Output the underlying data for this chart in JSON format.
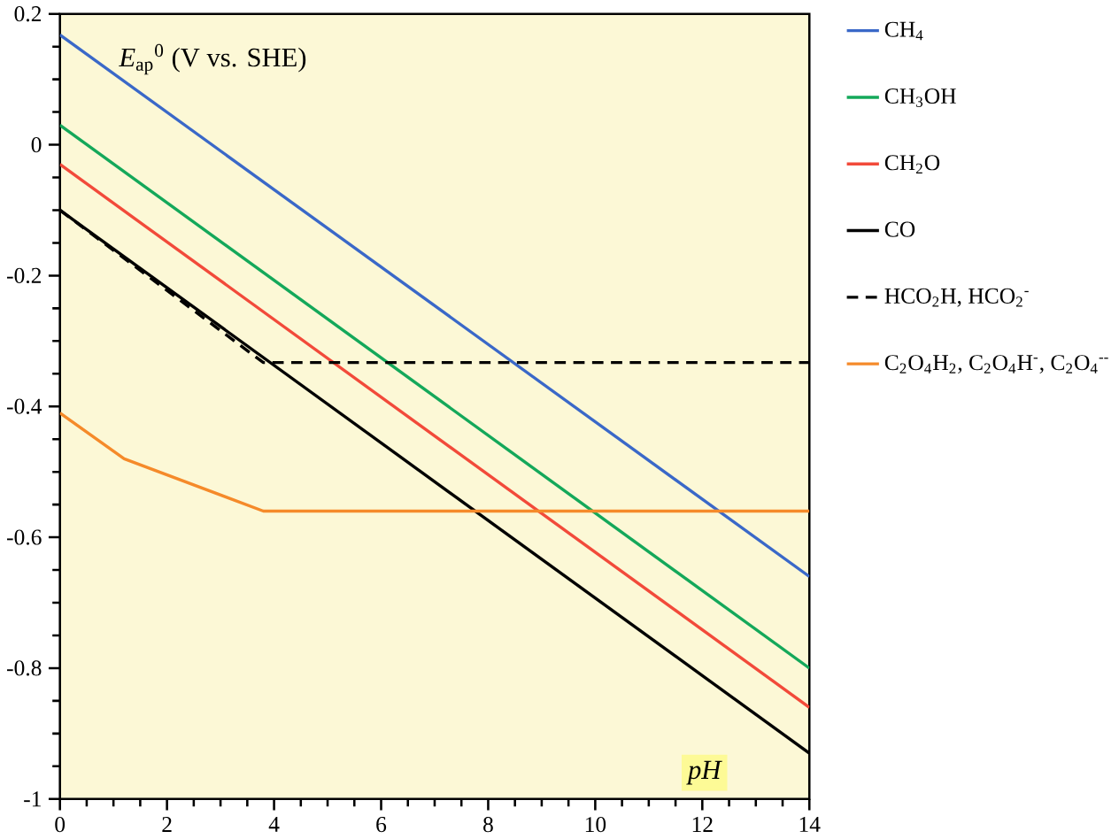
{
  "chart_data": {
    "type": "line",
    "xlabel": "pH",
    "ylabel": "*E*$_{ap}$$^{0}$ (V vs. SHE)",
    "xlim": [
      0,
      14
    ],
    "ylim": [
      -1,
      0.2
    ],
    "xticks": [
      0,
      2,
      4,
      6,
      8,
      10,
      12,
      14
    ],
    "yticks": [
      -1,
      -0.8,
      -0.6,
      -0.4,
      -0.2,
      0,
      0.2
    ],
    "legend": "right",
    "grid": false,
    "marker": "none",
    "series": [
      {
        "name": "CH$_{4}$",
        "color": "#3a68c8",
        "x": [
          0,
          14
        ],
        "values": [
          0.168,
          -0.66
        ]
      },
      {
        "name": "CH$_{3}$OH",
        "color": "#14a85a",
        "x": [
          0,
          14
        ],
        "values": [
          0.03,
          -0.8
        ]
      },
      {
        "name": "CH$_{2}$O",
        "color": "#f24a3a",
        "x": [
          0,
          14
        ],
        "values": [
          -0.03,
          -0.86
        ]
      },
      {
        "name": "CO",
        "color": "#000000",
        "x": [
          0,
          14
        ],
        "values": [
          -0.1,
          -0.93
        ]
      },
      {
        "name": "HCO$_{2}$H, HCO$_{2}$$^{-}$",
        "color": "#000000",
        "line_style": "dashed",
        "x": [
          0,
          3.8,
          14
        ],
        "values": [
          -0.1,
          -0.333,
          -0.333
        ]
      },
      {
        "name": "C$_{2}$O$_{4}$H$_{2}$, C$_{2}$O$_{4}$H$^{-}$, C$_{2}$O$_{4}$$^{--}$",
        "color": "#f58a2a",
        "x": [
          0,
          1.2,
          3.8,
          14
        ],
        "values": [
          -0.41,
          -0.48,
          -0.56,
          -0.56
        ]
      }
    ]
  }
}
